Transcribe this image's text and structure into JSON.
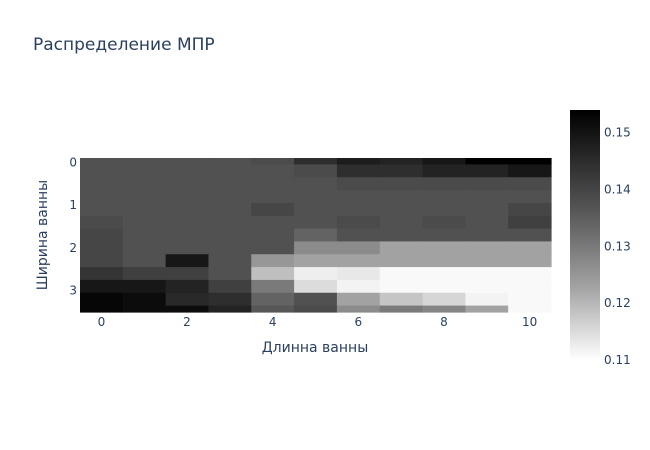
{
  "chart_data": {
    "type": "heatmap",
    "title": "Распределение МПР",
    "xlabel": "Длинна ванны",
    "ylabel": "Ширина ванны",
    "x_range": [
      -0.5,
      10.5
    ],
    "y_range": [
      -0.1,
      3.5
    ],
    "x_ticks": [
      "0",
      "2",
      "4",
      "6",
      "8",
      "10"
    ],
    "x_tick_values": [
      0,
      2,
      4,
      6,
      8,
      10
    ],
    "y_ticks": [
      "0",
      "1",
      "2",
      "3"
    ],
    "y_tick_values": [
      0,
      1,
      2,
      3
    ],
    "colorscale": "Greys",
    "zmin": 0.11,
    "zmax": 0.154,
    "colorbar_ticks": [
      "0.15",
      "0.14",
      "0.13",
      "0.12",
      "0.11"
    ],
    "colorbar_tick_values": [
      0.15,
      0.14,
      0.13,
      0.12,
      0.11
    ],
    "x": [
      0,
      1,
      2,
      3,
      4,
      5,
      6,
      7,
      8,
      9,
      10
    ],
    "y": [
      -0.1,
      0.2,
      0.5,
      0.8,
      1.1,
      1.4,
      1.7,
      2.0,
      2.3,
      2.6,
      2.9,
      3.2,
      3.5
    ],
    "z": [
      [
        0.14,
        0.14,
        0.14,
        0.14,
        0.141,
        0.146,
        0.149,
        0.148,
        0.15,
        0.154,
        0.154
      ],
      [
        0.14,
        0.14,
        0.14,
        0.14,
        0.14,
        0.141,
        0.146,
        0.146,
        0.148,
        0.148,
        0.15
      ],
      [
        0.14,
        0.14,
        0.14,
        0.14,
        0.14,
        0.14,
        0.141,
        0.141,
        0.141,
        0.141,
        0.141
      ],
      [
        0.14,
        0.14,
        0.14,
        0.14,
        0.14,
        0.14,
        0.14,
        0.14,
        0.14,
        0.14,
        0.14
      ],
      [
        0.14,
        0.14,
        0.14,
        0.14,
        0.142,
        0.14,
        0.14,
        0.14,
        0.14,
        0.14,
        0.142
      ],
      [
        0.141,
        0.14,
        0.14,
        0.14,
        0.14,
        0.14,
        0.141,
        0.14,
        0.141,
        0.14,
        0.143
      ],
      [
        0.142,
        0.14,
        0.14,
        0.14,
        0.14,
        0.137,
        0.14,
        0.14,
        0.14,
        0.14,
        0.14
      ],
      [
        0.142,
        0.14,
        0.14,
        0.14,
        0.14,
        0.13,
        0.13,
        0.126,
        0.126,
        0.126,
        0.126
      ],
      [
        0.142,
        0.14,
        0.15,
        0.14,
        0.128,
        0.126,
        0.126,
        0.126,
        0.126,
        0.126,
        0.126
      ],
      [
        0.145,
        0.143,
        0.143,
        0.14,
        0.121,
        0.113,
        0.114,
        0.111,
        0.111,
        0.111,
        0.111
      ],
      [
        0.15,
        0.15,
        0.148,
        0.143,
        0.133,
        0.116,
        0.112,
        0.111,
        0.111,
        0.111,
        0.111
      ],
      [
        0.153,
        0.152,
        0.147,
        0.146,
        0.137,
        0.14,
        0.126,
        0.12,
        0.117,
        0.112,
        0.111
      ],
      [
        0.153,
        0.152,
        0.152,
        0.148,
        0.139,
        0.141,
        0.13,
        0.133,
        0.131,
        0.126,
        0.111
      ]
    ]
  }
}
